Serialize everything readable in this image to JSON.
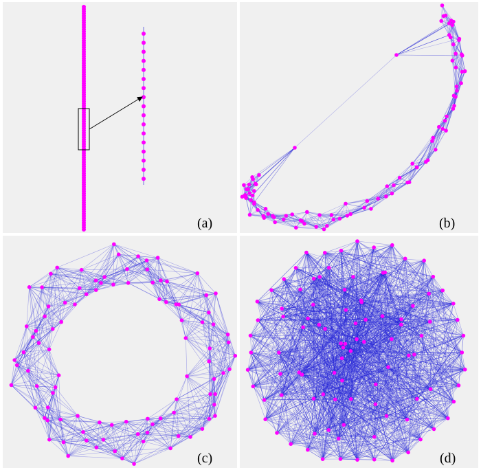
{
  "figure": {
    "panels": [
      {
        "id": "a",
        "label": "(a)",
        "layout": "line-with-zoom-inset",
        "node_count": 100
      },
      {
        "id": "b",
        "label": "(b)",
        "layout": "curved-arc",
        "node_count": 100
      },
      {
        "id": "c",
        "label": "(c)",
        "layout": "ring",
        "node_count": 100
      },
      {
        "id": "d",
        "label": "(d)",
        "layout": "filled-disk",
        "node_count": 100
      }
    ]
  },
  "style": {
    "node_color": "#ff00ff",
    "edge_color": "#2828d8",
    "panel_background": "#f0f0f0",
    "inset_box_color": "#000000"
  }
}
